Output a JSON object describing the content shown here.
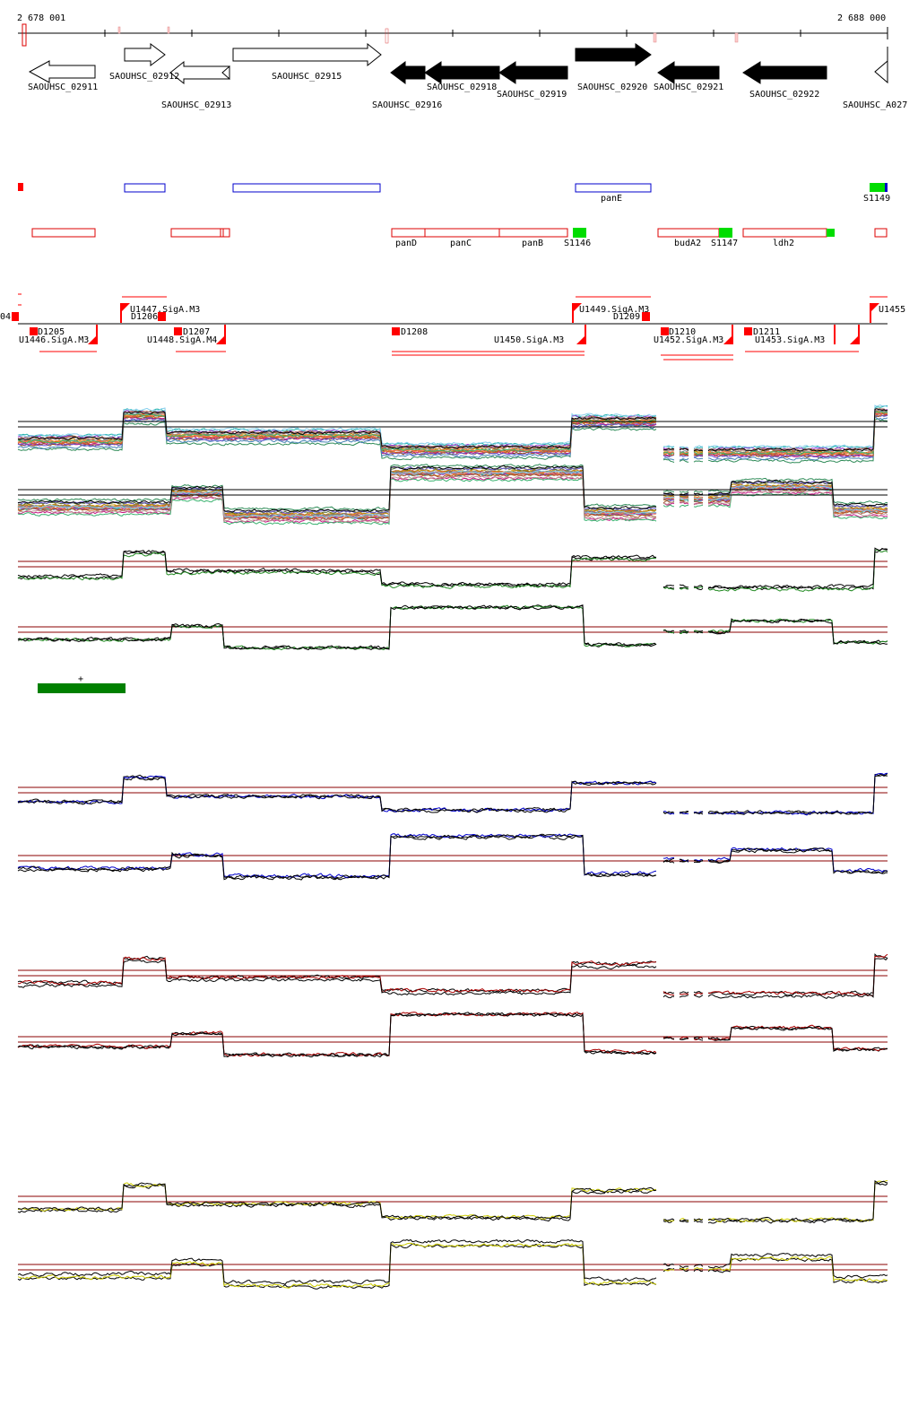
{
  "axis": {
    "start_label": "2 678 001",
    "end_label": "2 688 000",
    "start_bp": 2678001,
    "end_bp": 2688000
  },
  "colors": {
    "gene_fill": "#000000",
    "gene_outline": "#000000",
    "operon_blue": "#0000cc",
    "operon_red": "#dd0000",
    "sRNA_green": "#00dd00",
    "feature_red": "#ff0000",
    "track_black": "#000000",
    "track_green": "#228B22",
    "track_blue": "#0000cc",
    "track_red": "#aa0000",
    "track_yellow": "#cccc00",
    "threshold_line": "#8b0000",
    "legend_green": "#008000"
  },
  "genes": [
    {
      "id": "SAOUHSC_02911",
      "label": "SAOUHSC_02911",
      "strand": "-",
      "filled": false,
      "start": 2678170,
      "end": 2679050
    },
    {
      "id": "SAOUHSC_02912",
      "label": "SAOUHSC_02912",
      "strand": "+",
      "filled": false,
      "start": 2679250,
      "end": 2679700
    },
    {
      "id": "SAOUHSC_02913",
      "label": "SAOUHSC_02913",
      "strand": "-",
      "filled": false,
      "start": 2679720,
      "end": 2680270
    },
    {
      "id": "SAOUHSC_02915",
      "label": "SAOUHSC_02915",
      "strand": "+",
      "filled": false,
      "start": 2680440,
      "end": 2682200
    },
    {
      "id": "SAOUHSC_02916",
      "label": "SAOUHSC_02916",
      "strand": "-",
      "filled": true,
      "start": 2682250,
      "end": 2682640
    },
    {
      "id": "SAOUHSC_02918",
      "label": "SAOUHSC_02918",
      "strand": "-",
      "filled": true,
      "start": 2682640,
      "end": 2683500
    },
    {
      "id": "SAOUHSC_02919",
      "label": "SAOUHSC_02919",
      "strand": "-",
      "filled": true,
      "start": 2683500,
      "end": 2684300
    },
    {
      "id": "SAOUHSC_02920",
      "label": "SAOUHSC_02920",
      "strand": "+",
      "filled": true,
      "start": 2684400,
      "end": 2685270
    },
    {
      "id": "SAOUHSC_02921",
      "label": "SAOUHSC_02921",
      "strand": "-",
      "filled": true,
      "start": 2685450,
      "end": 2686180
    },
    {
      "id": "SAOUHSC_02922",
      "label": "SAOUHSC_02922",
      "strand": "-",
      "filled": true,
      "start": 2686450,
      "end": 2687450
    },
    {
      "id": "SAOUHSC_A027",
      "label": "SAOUHSC_A027",
      "strand": "-",
      "filled": false,
      "start": 2687800,
      "end": 2688000
    }
  ],
  "operon_labels": [
    {
      "id": "panE",
      "label": "panE"
    },
    {
      "id": "S1149",
      "label": "S1149"
    },
    {
      "id": "panD",
      "label": "panD"
    },
    {
      "id": "panC",
      "label": "panC"
    },
    {
      "id": "panB",
      "label": "panB"
    },
    {
      "id": "S1146",
      "label": "S1146"
    },
    {
      "id": "budA2",
      "label": "budA2"
    },
    {
      "id": "S1147",
      "label": "S1147"
    },
    {
      "id": "ldh2",
      "label": "ldh2"
    }
  ],
  "features": [
    {
      "id": "04",
      "label": "04"
    },
    {
      "id": "D1205",
      "label": "D1205"
    },
    {
      "id": "U1446.SigA.M3",
      "label": "U1446.SigA.M3"
    },
    {
      "id": "U1447.SigA.M3",
      "label": "U1447.SigA.M3"
    },
    {
      "id": "D1206",
      "label": "D1206"
    },
    {
      "id": "D1207",
      "label": "D1207"
    },
    {
      "id": "U1448.SigA.M4",
      "label": "U1448.SigA.M4"
    },
    {
      "id": "D1208",
      "label": "D1208"
    },
    {
      "id": "U1450.SigA.M3",
      "label": "U1450.SigA.M3"
    },
    {
      "id": "U1449.SigA.M3",
      "label": "U1449.SigA.M3"
    },
    {
      "id": "D1209",
      "label": "D1209"
    },
    {
      "id": "D1210",
      "label": "D1210"
    },
    {
      "id": "U1452.SigA.M3",
      "label": "U1452.SigA.M3"
    },
    {
      "id": "D1211",
      "label": "D1211"
    },
    {
      "id": "U1453.SigA.M3",
      "label": "U1453.SigA.M3"
    },
    {
      "id": "U1455",
      "label": "U1455"
    }
  ],
  "legend": {
    "label": "+"
  }
}
